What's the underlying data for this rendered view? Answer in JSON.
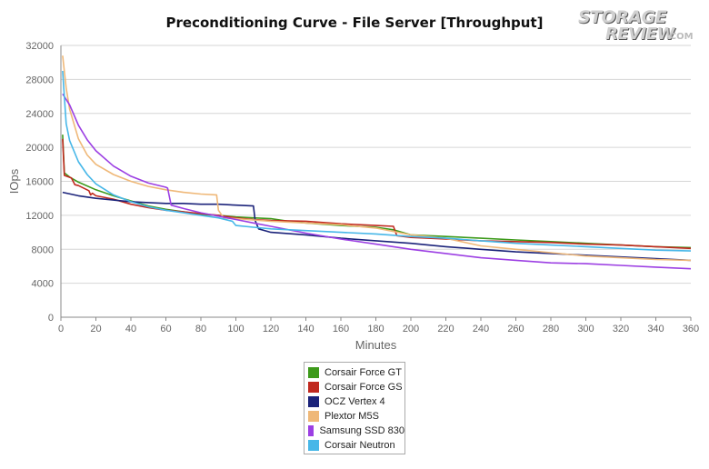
{
  "chart_data": {
    "type": "line",
    "title": "Preconditioning Curve - File Server [Throughput]",
    "xlabel": "Minutes",
    "ylabel": "IOps",
    "xlim": [
      0,
      360
    ],
    "ylim": [
      0,
      32000
    ],
    "xticks": [
      0,
      20,
      40,
      60,
      80,
      100,
      120,
      140,
      160,
      180,
      200,
      220,
      240,
      260,
      280,
      300,
      320,
      340,
      360
    ],
    "yticks": [
      0,
      4000,
      8000,
      12000,
      16000,
      20000,
      24000,
      28000,
      32000
    ],
    "grid": "horizontal",
    "legend_position": "bottom",
    "series": [
      {
        "name": "Corsair Force GT",
        "color": "#3d9a1b",
        "points": [
          [
            1,
            21500
          ],
          [
            2,
            17000
          ],
          [
            5,
            16500
          ],
          [
            10,
            15900
          ],
          [
            20,
            15000
          ],
          [
            30,
            14300
          ],
          [
            40,
            13700
          ],
          [
            50,
            13100
          ],
          [
            60,
            12700
          ],
          [
            70,
            12400
          ],
          [
            80,
            12100
          ],
          [
            90,
            12000
          ],
          [
            100,
            11800
          ],
          [
            110,
            11700
          ],
          [
            120,
            11600
          ],
          [
            130,
            11300
          ],
          [
            140,
            11100
          ],
          [
            160,
            10800
          ],
          [
            180,
            10600
          ],
          [
            190,
            10300
          ],
          [
            200,
            9700
          ],
          [
            220,
            9500
          ],
          [
            240,
            9300
          ],
          [
            260,
            9100
          ],
          [
            280,
            8900
          ],
          [
            300,
            8700
          ],
          [
            320,
            8500
          ],
          [
            340,
            8300
          ],
          [
            360,
            8200
          ]
        ]
      },
      {
        "name": "Corsair Force GS",
        "color": "#c0291f",
        "points": [
          [
            1,
            21000
          ],
          [
            2,
            16700
          ],
          [
            6,
            16400
          ],
          [
            8,
            15600
          ],
          [
            10,
            15500
          ],
          [
            16,
            14900
          ],
          [
            17,
            14400
          ],
          [
            18,
            14600
          ],
          [
            20,
            14300
          ],
          [
            30,
            13900
          ],
          [
            40,
            13300
          ],
          [
            50,
            12900
          ],
          [
            60,
            12600
          ],
          [
            70,
            12400
          ],
          [
            80,
            12200
          ],
          [
            90,
            12000
          ],
          [
            100,
            11700
          ],
          [
            110,
            11500
          ],
          [
            120,
            11400
          ],
          [
            140,
            11300
          ],
          [
            160,
            11000
          ],
          [
            180,
            10800
          ],
          [
            190,
            10700
          ],
          [
            192,
            9600
          ],
          [
            200,
            9400
          ],
          [
            220,
            9200
          ],
          [
            240,
            9000
          ],
          [
            260,
            8900
          ],
          [
            280,
            8800
          ],
          [
            300,
            8600
          ],
          [
            320,
            8500
          ],
          [
            340,
            8300
          ],
          [
            360,
            8100
          ]
        ]
      },
      {
        "name": "OCZ Vertex 4",
        "color": "#1b237a",
        "points": [
          [
            1,
            14700
          ],
          [
            10,
            14300
          ],
          [
            20,
            14000
          ],
          [
            30,
            13800
          ],
          [
            40,
            13600
          ],
          [
            50,
            13500
          ],
          [
            60,
            13400
          ],
          [
            70,
            13400
          ],
          [
            80,
            13300
          ],
          [
            90,
            13300
          ],
          [
            100,
            13200
          ],
          [
            110,
            13100
          ],
          [
            111,
            11400
          ],
          [
            113,
            10400
          ],
          [
            120,
            10000
          ],
          [
            140,
            9700
          ],
          [
            160,
            9300
          ],
          [
            180,
            9000
          ],
          [
            200,
            8700
          ],
          [
            220,
            8300
          ],
          [
            240,
            8000
          ],
          [
            260,
            7700
          ],
          [
            280,
            7500
          ],
          [
            300,
            7300
          ],
          [
            320,
            7100
          ],
          [
            340,
            6900
          ],
          [
            360,
            6700
          ]
        ]
      },
      {
        "name": "Plextor M5S",
        "color": "#efb878",
        "points": [
          [
            1,
            30800
          ],
          [
            3,
            27000
          ],
          [
            5,
            24500
          ],
          [
            10,
            21000
          ],
          [
            15,
            19100
          ],
          [
            20,
            18000
          ],
          [
            30,
            16800
          ],
          [
            40,
            16000
          ],
          [
            50,
            15400
          ],
          [
            60,
            15000
          ],
          [
            70,
            14700
          ],
          [
            80,
            14500
          ],
          [
            89,
            14400
          ],
          [
            90,
            12600
          ],
          [
            93,
            11700
          ],
          [
            100,
            11600
          ],
          [
            120,
            11300
          ],
          [
            140,
            11100
          ],
          [
            160,
            10900
          ],
          [
            180,
            10500
          ],
          [
            200,
            9700
          ],
          [
            220,
            9300
          ],
          [
            240,
            8400
          ],
          [
            260,
            8000
          ],
          [
            280,
            7600
          ],
          [
            300,
            7200
          ],
          [
            320,
            7000
          ],
          [
            340,
            6800
          ],
          [
            360,
            6700
          ]
        ]
      },
      {
        "name": "Samsung SSD 830",
        "color": "#9c3fe3",
        "points": [
          [
            1,
            26300
          ],
          [
            5,
            25000
          ],
          [
            10,
            22600
          ],
          [
            15,
            20900
          ],
          [
            20,
            19600
          ],
          [
            30,
            17800
          ],
          [
            40,
            16600
          ],
          [
            50,
            15800
          ],
          [
            60,
            15300
          ],
          [
            61,
            15200
          ],
          [
            63,
            13200
          ],
          [
            70,
            12800
          ],
          [
            80,
            12300
          ],
          [
            90,
            11900
          ],
          [
            100,
            11500
          ],
          [
            110,
            11100
          ],
          [
            120,
            10700
          ],
          [
            140,
            9900
          ],
          [
            160,
            9200
          ],
          [
            180,
            8600
          ],
          [
            200,
            8000
          ],
          [
            220,
            7500
          ],
          [
            240,
            7000
          ],
          [
            260,
            6700
          ],
          [
            280,
            6400
          ],
          [
            300,
            6300
          ],
          [
            320,
            6100
          ],
          [
            340,
            5900
          ],
          [
            360,
            5700
          ]
        ]
      },
      {
        "name": "Corsair Neutron",
        "color": "#47b7e8",
        "points": [
          [
            1,
            29000
          ],
          [
            3,
            22800
          ],
          [
            5,
            20800
          ],
          [
            10,
            18300
          ],
          [
            15,
            16800
          ],
          [
            20,
            15700
          ],
          [
            30,
            14400
          ],
          [
            40,
            13600
          ],
          [
            50,
            13000
          ],
          [
            60,
            12600
          ],
          [
            70,
            12300
          ],
          [
            80,
            12000
          ],
          [
            90,
            11700
          ],
          [
            98,
            11300
          ],
          [
            100,
            10800
          ],
          [
            110,
            10600
          ],
          [
            120,
            10400
          ],
          [
            140,
            10200
          ],
          [
            160,
            10000
          ],
          [
            180,
            9800
          ],
          [
            200,
            9500
          ],
          [
            220,
            9300
          ],
          [
            240,
            9000
          ],
          [
            260,
            8700
          ],
          [
            280,
            8500
          ],
          [
            300,
            8300
          ],
          [
            320,
            8100
          ],
          [
            340,
            7900
          ],
          [
            360,
            7800
          ]
        ]
      }
    ]
  },
  "logo": {
    "line1": "STORAGE",
    "line2": "REVIEW",
    "line3": ".COM"
  }
}
